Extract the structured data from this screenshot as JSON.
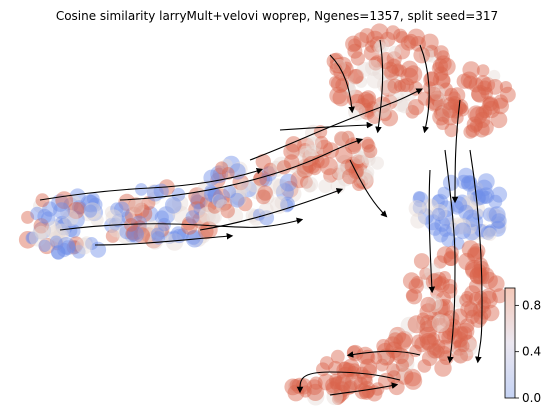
{
  "chart_data": {
    "type": "scatter",
    "title": "Cosine similarity larryMult+velovi woprep, Ngenes=1357, split seed=317",
    "xlabel": "",
    "ylabel": "",
    "grid": false,
    "axes_visible": false,
    "overlay": "velocity streamlines with arrowheads (black)",
    "colormap": "coolwarm",
    "colorbar": {
      "location": "bottom-right",
      "range": [
        0.0,
        0.95
      ],
      "ticks": [
        0.0,
        0.4,
        0.8
      ],
      "tick_labels": [
        "0.0",
        "0.4",
        "0.8"
      ],
      "low_color": "#c5d3f4",
      "mid_color": "#f2f2f2",
      "high_color": "#e8b4a6"
    },
    "point_colors": {
      "low": "#6f8fe8",
      "mid": "#e6dcd6",
      "high": "#d9634c"
    }
  }
}
